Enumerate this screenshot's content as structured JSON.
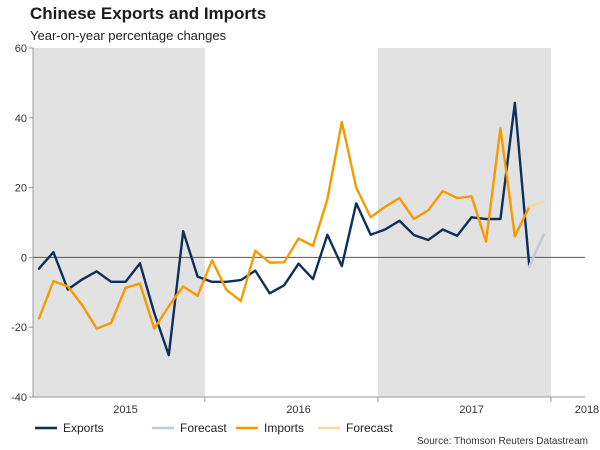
{
  "title": "Chinese Exports and Imports",
  "subtitle": "Year-on-year percentage changes",
  "source": "Source: Thomson Reuters Datastream",
  "chart_data": {
    "type": "line",
    "title": "Chinese Exports and Imports",
    "subtitle": "Year-on-year percentage changes",
    "xlabel": "",
    "ylabel": "",
    "ylim": [
      -40,
      60
    ],
    "yticks": [
      -40,
      -20,
      0,
      20,
      40,
      60
    ],
    "x_start": "Nov 2014",
    "x_end": "Mar 2018",
    "year_labels": [
      {
        "label": "2015",
        "month_index": 6
      },
      {
        "label": "2016",
        "month_index": 18
      },
      {
        "label": "2017",
        "month_index": 30
      },
      {
        "label": "2018",
        "month_index": 38
      }
    ],
    "shaded_periods": [
      {
        "from_month_index": 0,
        "to_month_index": 12
      },
      {
        "from_month_index": 24,
        "to_month_index": 36
      }
    ],
    "grid": false,
    "zero_line": true,
    "legend_position": "bottom",
    "series": [
      {
        "name": "Exports",
        "color": "#0e2f5c",
        "x_start_index": 0,
        "values": [
          -3.2,
          1.5,
          -9.2,
          -6.3,
          -4.0,
          -7.0,
          -7.0,
          -1.7,
          -16.0,
          -28.0,
          7.5,
          -5.5,
          -7.0,
          -7.0,
          -6.5,
          -3.8,
          -10.3,
          -8.0,
          -1.8,
          -6.2,
          6.5,
          -2.5,
          15.5,
          6.5,
          8.0,
          10.5,
          6.4,
          5.0,
          8.0,
          6.2,
          11.5,
          11.0,
          11.0,
          44.3,
          -2.5
        ]
      },
      {
        "name": "Forecast",
        "color": "#c0c9d8",
        "x_start_index": 34,
        "values": [
          -2.5,
          6.5
        ]
      },
      {
        "name": "Imports",
        "color": "#f59b00",
        "x_start_index": 0,
        "values": [
          -17.5,
          -6.8,
          -8.3,
          -13.7,
          -20.4,
          -18.8,
          -8.7,
          -7.5,
          -20.4,
          -14.0,
          -8.3,
          -11.0,
          -0.8,
          -9.3,
          -12.5,
          1.9,
          -1.5,
          -1.4,
          5.4,
          3.3,
          16.7,
          38.8,
          20.0,
          11.5,
          14.5,
          17.0,
          11.0,
          13.5,
          19.0,
          17.0,
          17.5,
          4.5,
          37.0,
          6.0,
          14.5
        ]
      },
      {
        "name": "Forecast",
        "color": "#fbd8a0",
        "x_start_index": 34,
        "values": [
          14.5,
          16.0
        ]
      }
    ]
  }
}
